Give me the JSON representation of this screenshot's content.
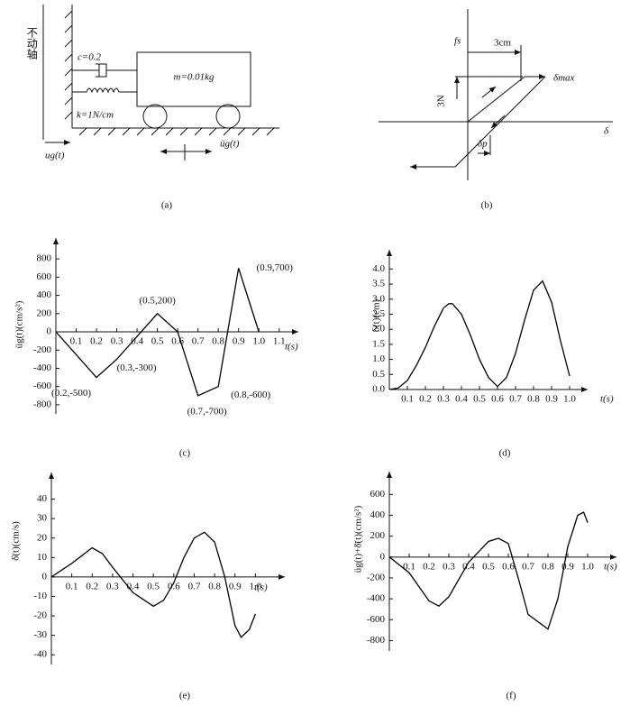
{
  "diagram_a": {
    "fixed_axis": "不动轴",
    "damping": "c=0.2",
    "mass": "m=0.01kg",
    "stiffness": "k=1N/cm",
    "ground_displacement": "ug(t)",
    "ground_acceleration": "üg(t)",
    "caption": "(a)"
  },
  "diagram_b": {
    "force": "fs",
    "yield_displacement": "3cm",
    "max_displacement": "δmax",
    "yield_force": "3N",
    "displacement": "δ",
    "plastic_displacement": "δp",
    "caption": "(b)"
  },
  "chart_data": [
    {
      "type": "line",
      "caption": "(c)",
      "y_label": "üg(t)(cm/s²)",
      "x_label": "t(s)",
      "x": [
        0,
        0.2,
        0.3,
        0.5,
        0.6,
        0.7,
        0.8,
        0.9,
        1.0
      ],
      "values": [
        0,
        -500,
        -300,
        200,
        0,
        -700,
        -600,
        700,
        0
      ],
      "annotations": [
        "(0.2,-500)",
        "(0.3,-300)",
        "(0.5,200)",
        "(0.7,-700)",
        "(0.8,-600)",
        "(0.9,700)"
      ],
      "xlim": [
        0,
        1.15
      ],
      "ylim": [
        -900,
        950
      ],
      "xticks": [
        0.1,
        0.2,
        0.3,
        0.4,
        0.5,
        0.6,
        0.7,
        0.8,
        0.9,
        {
          "value": 1,
          "label": "1.0"
        },
        1.1
      ],
      "yticks": [
        -800,
        -600,
        -400,
        -200,
        0,
        200,
        400,
        600,
        800
      ],
      "color": "#000000"
    },
    {
      "type": "line",
      "caption": "(d)",
      "y_label": "δ(t)(cm)",
      "x_label": "t(s)",
      "x": [
        0,
        0.05,
        0.1,
        0.15,
        0.2,
        0.25,
        0.3,
        0.33,
        0.35,
        0.4,
        0.45,
        0.5,
        0.55,
        0.6,
        0.65,
        0.7,
        0.75,
        0.8,
        0.85,
        0.9,
        0.95,
        1.0
      ],
      "values": [
        0,
        0.05,
        0.3,
        0.8,
        1.4,
        2.1,
        2.7,
        2.85,
        2.85,
        2.5,
        1.8,
        1.0,
        0.4,
        0.1,
        0.4,
        1.2,
        2.3,
        3.3,
        3.6,
        2.9,
        1.6,
        0.45
      ],
      "xlim": [
        0,
        1.05
      ],
      "ylim": [
        0,
        4.4
      ],
      "xticks": [
        0.1,
        0.2,
        0.3,
        0.4,
        0.5,
        0.6,
        0.7,
        0.8,
        0.9,
        {
          "value": 1,
          "label": "1.0"
        }
      ],
      "yticks": [
        {
          "value": 0,
          "label": "0.0"
        },
        0.5,
        {
          "value": 1,
          "label": "1.0"
        },
        1.5,
        {
          "value": 2,
          "label": "2.0"
        },
        2.5,
        {
          "value": 3,
          "label": "3.0"
        },
        3.5,
        {
          "value": 4,
          "label": "4.0"
        }
      ],
      "color": "#000000"
    },
    {
      "type": "line",
      "caption": "(e)",
      "y_label": "δ̇(t)(cm/s)",
      "x_label": "t(s)",
      "x": [
        0,
        0.1,
        0.2,
        0.25,
        0.3,
        0.4,
        0.5,
        0.55,
        0.6,
        0.65,
        0.7,
        0.75,
        0.8,
        0.85,
        0.9,
        0.93,
        0.97,
        1.0
      ],
      "values": [
        0,
        7,
        15,
        12,
        5,
        -8,
        -15,
        -12,
        -3,
        10,
        20,
        23,
        18,
        0,
        -25,
        -31,
        -27,
        -19
      ],
      "xlim": [
        0,
        1.1
      ],
      "ylim": [
        -45,
        50
      ],
      "xticks": [
        0.1,
        0.2,
        0.3,
        0.4,
        0.5,
        0.6,
        0.7,
        0.8,
        0.9,
        {
          "value": 1,
          "label": "1.0"
        }
      ],
      "yticks": [
        -40,
        -30,
        -20,
        -10,
        0,
        10,
        20,
        30,
        40
      ],
      "color": "#000000"
    },
    {
      "type": "line",
      "caption": "(f)",
      "y_label": "üg(t)+δ̈(t)(cm/s²)",
      "x_label": "t(s)",
      "x": [
        0,
        0.1,
        0.2,
        0.25,
        0.3,
        0.4,
        0.5,
        0.55,
        0.6,
        0.65,
        0.7,
        0.8,
        0.85,
        0.9,
        0.95,
        0.98,
        1.0
      ],
      "values": [
        0,
        -150,
        -420,
        -470,
        -380,
        -50,
        150,
        180,
        130,
        -200,
        -550,
        -690,
        -400,
        100,
        400,
        430,
        330
      ],
      "xlim": [
        0,
        1.1
      ],
      "ylim": [
        -900,
        750
      ],
      "xticks": [
        0.1,
        0.2,
        0.3,
        0.4,
        0.5,
        0.6,
        0.7,
        0.8,
        0.9,
        {
          "value": 1,
          "label": "1.0"
        }
      ],
      "yticks": [
        -800,
        -600,
        -400,
        -200,
        0,
        200,
        400,
        600
      ],
      "color": "#000000"
    }
  ]
}
